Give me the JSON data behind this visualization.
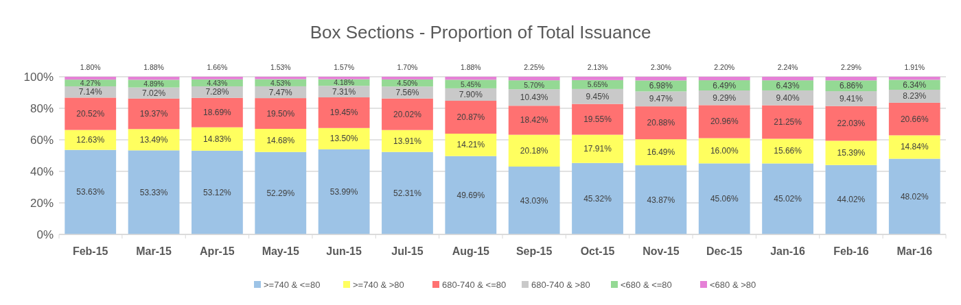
{
  "chart_data": {
    "type": "bar",
    "stacked": true,
    "title": "Box Sections - Proportion of Total Issuance",
    "categories": [
      "Feb-15",
      "Mar-15",
      "Apr-15",
      "May-15",
      "Jun-15",
      "Jul-15",
      "Aug-15",
      "Sep-15",
      "Oct-15",
      "Nov-15",
      "Dec-15",
      "Jan-16",
      "Feb-16",
      "Mar-16"
    ],
    "ylim": [
      0,
      100
    ],
    "yticks": [
      {
        "value": 0,
        "label": "0%"
      },
      {
        "value": 20,
        "label": "20%"
      },
      {
        "value": 40,
        "label": "40%"
      },
      {
        "value": 60,
        "label": "60%"
      },
      {
        "value": 80,
        "label": "80%"
      },
      {
        "value": 100,
        "label": "100%"
      }
    ],
    "grid": "y",
    "legend": "bottom",
    "series": [
      {
        "name": ">=740 & <=80",
        "color": "#9dc3e6",
        "values": [
          53.63,
          53.33,
          53.12,
          52.29,
          53.99,
          52.31,
          49.69,
          43.03,
          45.32,
          43.87,
          45.06,
          45.02,
          44.02,
          48.02
        ],
        "value_labels": [
          "53.63%",
          "53.33%",
          "53.12%",
          "52.29%",
          "53.99%",
          "52.31%",
          "49.69%",
          "43.03%",
          "45.32%",
          "43.87%",
          "45.06%",
          "45.02%",
          "44.02%",
          "48.02%"
        ]
      },
      {
        "name": ">=740 & >80",
        "color": "#ffff5f",
        "values": [
          12.63,
          13.49,
          14.83,
          14.68,
          13.5,
          13.91,
          14.21,
          20.18,
          17.91,
          16.49,
          16.0,
          15.66,
          15.39,
          14.84
        ],
        "value_labels": [
          "12.63%",
          "13.49%",
          "14.83%",
          "14.68%",
          "13.50%",
          "13.91%",
          "14.21%",
          "20.18%",
          "17.91%",
          "16.49%",
          "16.00%",
          "15.66%",
          "15.39%",
          "14.84%"
        ]
      },
      {
        "name": "680-740 & <=80",
        "color": "#ff7171",
        "values": [
          20.52,
          19.37,
          18.69,
          19.5,
          19.45,
          20.02,
          20.87,
          18.42,
          19.55,
          20.88,
          20.96,
          21.25,
          22.03,
          20.66
        ],
        "value_labels": [
          "20.52%",
          "19.37%",
          "18.69%",
          "19.50%",
          "19.45%",
          "20.02%",
          "20.87%",
          "18.42%",
          "19.55%",
          "20.88%",
          "20.96%",
          "21.25%",
          "22.03%",
          "20.66%"
        ]
      },
      {
        "name": "680-740 & >80",
        "color": "#c9c9c9",
        "values": [
          7.14,
          7.02,
          7.28,
          7.47,
          7.31,
          7.56,
          7.9,
          10.43,
          9.45,
          9.47,
          9.29,
          9.4,
          9.41,
          8.23
        ],
        "value_labels": [
          "7.14%",
          "7.02%",
          "7.28%",
          "7.47%",
          "7.31%",
          "7.56%",
          "7.90%",
          "10.43%",
          "9.45%",
          "9.47%",
          "9.29%",
          "9.40%",
          "9.41%",
          "8.23%"
        ]
      },
      {
        "name": "<680 & <=80",
        "color": "#94d994",
        "values": [
          4.27,
          4.89,
          4.43,
          4.53,
          4.18,
          4.5,
          5.45,
          5.7,
          5.65,
          6.98,
          6.49,
          6.43,
          6.86,
          6.34
        ],
        "value_labels": [
          "4.27%",
          "4.89%",
          "4.43%",
          "4.53%",
          "4.18%",
          "4.50%",
          "5.45%",
          "5.70%",
          "5.65%",
          "6.98%",
          "6.49%",
          "6.43%",
          "6.86%",
          "6.34%"
        ]
      },
      {
        "name": "<680 & >80",
        "color": "#e580d6",
        "values": [
          1.8,
          1.88,
          1.66,
          1.53,
          1.57,
          1.7,
          1.88,
          2.25,
          2.13,
          2.3,
          2.2,
          2.24,
          2.29,
          1.91
        ],
        "value_labels": [
          "1.80%",
          "1.88%",
          "1.66%",
          "1.53%",
          "1.57%",
          "1.70%",
          "1.88%",
          "2.25%",
          "2.13%",
          "2.30%",
          "2.20%",
          "2.24%",
          "2.29%",
          "1.91%"
        ]
      }
    ]
  }
}
